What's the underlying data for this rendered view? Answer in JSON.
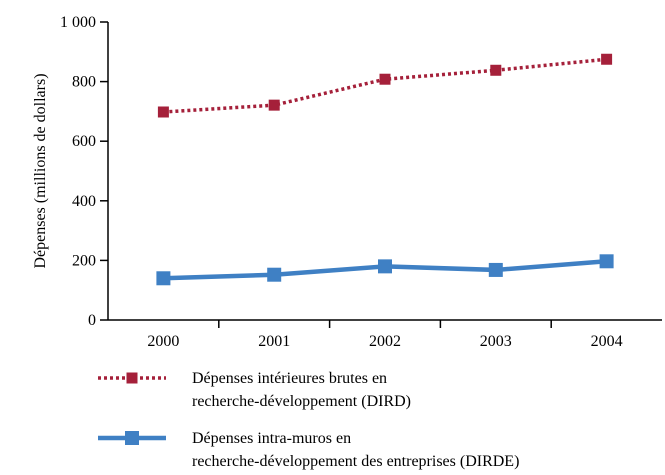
{
  "chart_data": {
    "type": "line",
    "y_label": "Dépenses (millions de dollars)",
    "categories": [
      "2000",
      "2001",
      "2002",
      "2003",
      "2004"
    ],
    "series": [
      {
        "name": "Dépenses intérieures brutes en recherche-développement (DIRD)",
        "color": "#a5203a",
        "dash": true,
        "values": [
          698,
          721,
          808,
          838,
          875
        ]
      },
      {
        "name": "Dépenses intra-muros en recherche-développement des entreprises (DIRDE)",
        "color": "#3f80c4",
        "dash": false,
        "values": [
          140,
          152,
          180,
          168,
          197
        ]
      }
    ],
    "ylim": [
      0,
      1000
    ],
    "yticks": [
      0,
      200,
      400,
      600,
      800,
      {
        "value": 1000,
        "label": "1 000"
      }
    ],
    "grid": false
  }
}
